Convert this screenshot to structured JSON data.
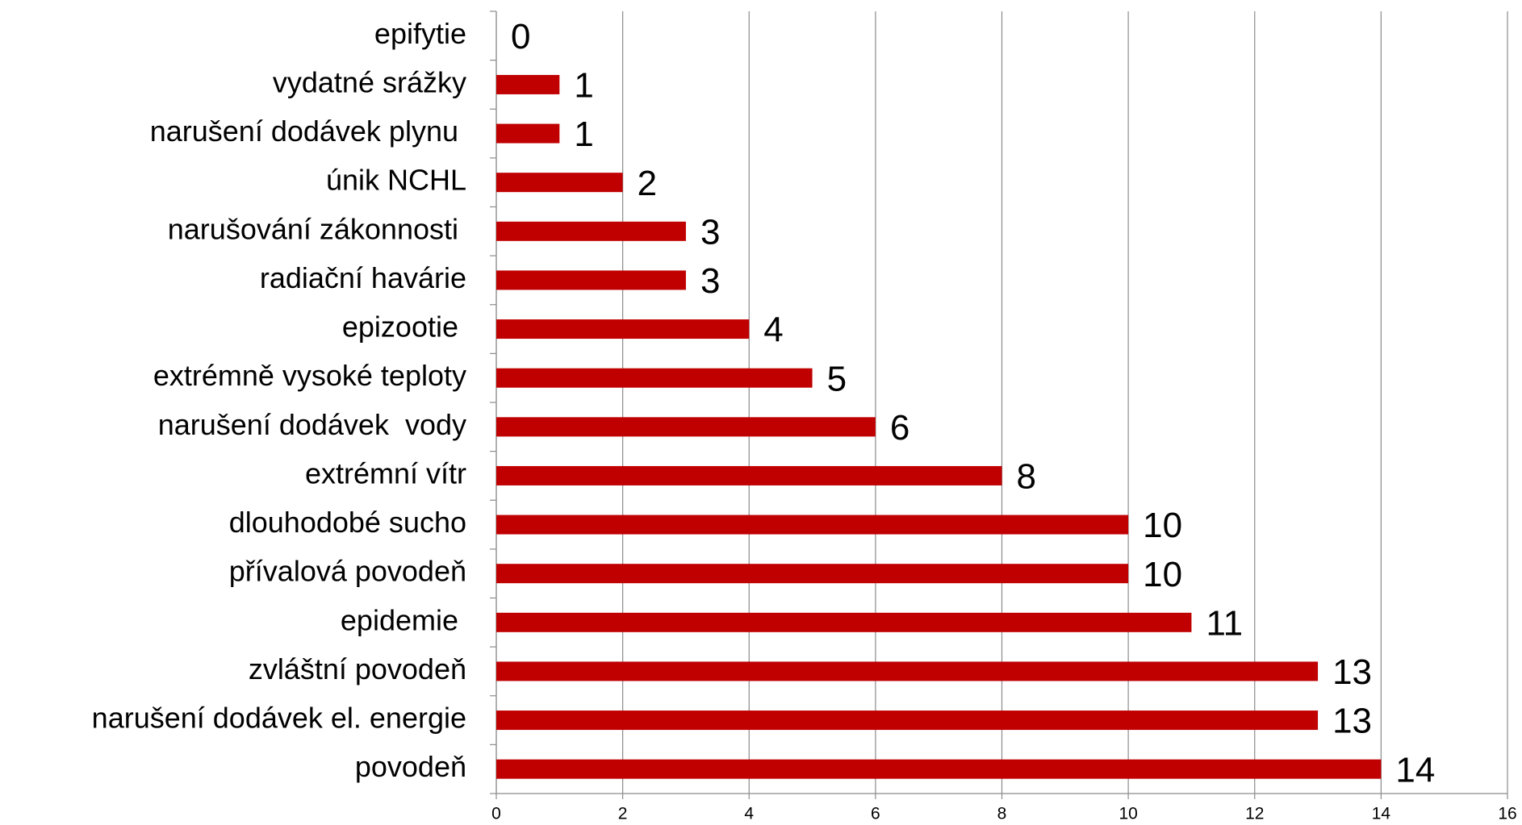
{
  "chart_data": {
    "type": "barh",
    "categories": [
      "epifytie",
      "vydatné srážky",
      "narušení dodávek plynu ",
      "únik NCHL",
      "narušování zákonnosti ",
      "radiační havárie",
      "epizootie ",
      "extrémně vysoké teploty",
      "narušení dodávek  vody",
      "extrémní vítr",
      "dlouhodobé sucho",
      "přívalová povodeň",
      "epidemie ",
      "zvláštní povodeň",
      "narušení dodávek el. energie",
      "povodeň"
    ],
    "values": [
      0,
      1,
      1,
      2,
      3,
      3,
      4,
      5,
      6,
      8,
      10,
      10,
      11,
      13,
      13,
      14
    ],
    "color": "#c00000",
    "xlim": [
      0,
      16
    ],
    "xticks": [
      0,
      2,
      4,
      6,
      8,
      10,
      12,
      14,
      16
    ],
    "grid": true
  }
}
